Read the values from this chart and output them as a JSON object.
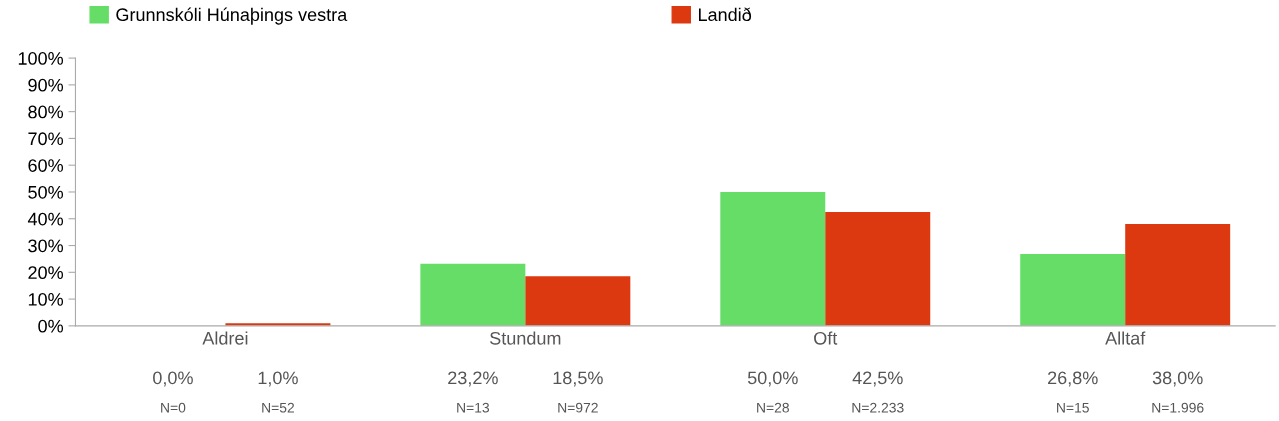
{
  "chart_data": {
    "type": "bar",
    "categories": [
      "Aldrei",
      "Stundum",
      "Oft",
      "Alltaf"
    ],
    "series": [
      {
        "name": "Grunnskóli Húnaþings vestra",
        "color": "#66dd66",
        "values": [
          0.0,
          23.2,
          50.0,
          26.8
        ],
        "value_labels": [
          "0,0%",
          "23,2%",
          "50,0%",
          "26,8%"
        ]
      },
      {
        "name": "Landið",
        "color": "#dd3911",
        "values": [
          1.0,
          18.5,
          42.5,
          38.0
        ],
        "value_labels": [
          "1,0%",
          "18,5%",
          "42,5%",
          "38,0%"
        ]
      }
    ],
    "ylim": [
      0,
      100
    ],
    "yticks": [
      {
        "value": 0,
        "label": "0%"
      },
      {
        "value": 10,
        "label": "10%"
      },
      {
        "value": 20,
        "label": "20%"
      },
      {
        "value": 30,
        "label": "30%"
      },
      {
        "value": 40,
        "label": "40%"
      },
      {
        "value": 50,
        "label": "50%"
      },
      {
        "value": 60,
        "label": "60%"
      },
      {
        "value": 70,
        "label": "70%"
      },
      {
        "value": 80,
        "label": "80%"
      },
      {
        "value": 90,
        "label": "90%"
      },
      {
        "value": 100,
        "label": "100%"
      }
    ],
    "annotations": [
      "N=0",
      "N=52",
      "N=13",
      "N=972",
      "N=28",
      "N=2.233",
      "N=15",
      "N=1.996"
    ],
    "legend": "top left",
    "grid": false
  }
}
